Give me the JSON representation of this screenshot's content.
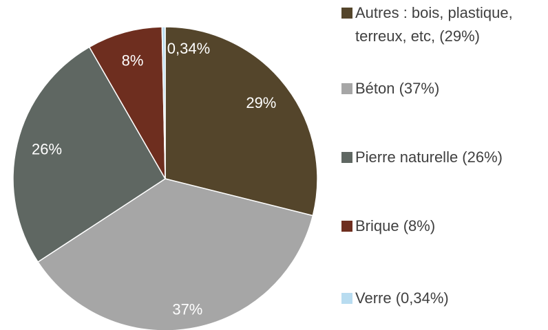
{
  "chart_data": {
    "type": "pie",
    "categories": [
      "Autres : bois, plastique, terreux, etc, (29%)",
      "Béton (37%)",
      "Pierre naturelle (26%)",
      "Brique (8%)",
      "Verre (0,34%)"
    ],
    "values": [
      29,
      37,
      26,
      8,
      0.34
    ],
    "value_labels": [
      "29%",
      "37%",
      "26%",
      "8%",
      "0,34%"
    ],
    "colors": [
      "#54452b",
      "#a6a6a6",
      "#5f6762",
      "#6e2e1f",
      "#b8dcf0"
    ]
  }
}
